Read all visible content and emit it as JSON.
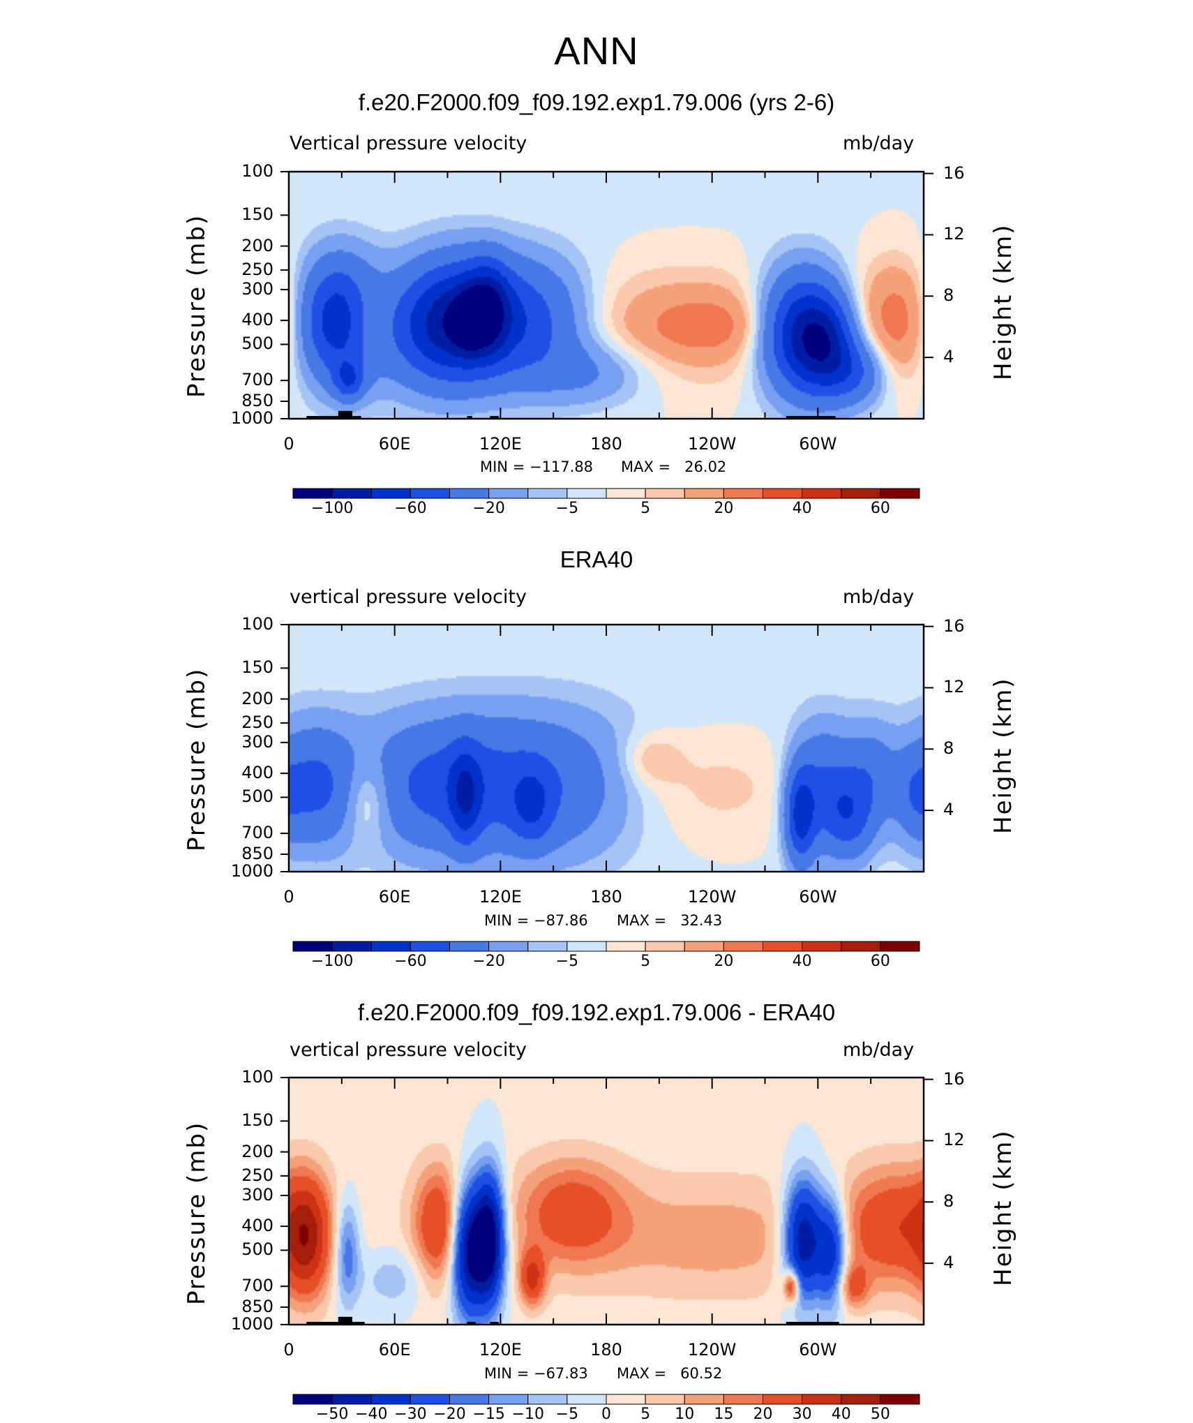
{
  "main_title": "ANN",
  "colors": {
    "frame": "#000000",
    "land": "#000000"
  },
  "chart_data": [
    {
      "type": "heatmap",
      "title": "f.e20.F2000.f09_f09.192.exp1.79.006 (yrs 2-6)",
      "left_label": "Vertical pressure velocity",
      "right_label": "mb/day",
      "ylabel": "Pressure (mb)",
      "y2label": "Height (km)",
      "xlim": [
        0,
        360
      ],
      "ylim": [
        1000,
        100
      ],
      "pressure_ticks": [
        100,
        150,
        200,
        250,
        300,
        400,
        500,
        700,
        850,
        1000
      ],
      "height_ticks": [
        16,
        12,
        8,
        4
      ],
      "lon_ticks": [
        {
          "lon": 0,
          "label": "0"
        },
        {
          "lon": 60,
          "label": "60E"
        },
        {
          "lon": 120,
          "label": "120E"
        },
        {
          "lon": 180,
          "label": "180"
        },
        {
          "lon": 240,
          "label": "120W"
        },
        {
          "lon": 300,
          "label": "60W"
        }
      ],
      "min_label": "MIN = −117.88",
      "max_label": "MAX =   26.02",
      "colorbar": {
        "colors": [
          "#00007f",
          "#001ea5",
          "#0032cc",
          "#1e50e6",
          "#4678e6",
          "#78a0f0",
          "#a5c3f5",
          "#d2e6fa",
          "#fae6d2",
          "#fac8aa",
          "#f5a078",
          "#f07850",
          "#e65028",
          "#cd3214",
          "#a51e0a",
          "#7d0000"
        ],
        "labels": [
          "−100",
          "−60",
          "−20",
          "−5",
          "5",
          "20",
          "40",
          "60"
        ]
      },
      "blobs": [
        {
          "lon": 28,
          "p": 400,
          "w": 16,
          "h": 0.55,
          "v": -75
        },
        {
          "lon": 34,
          "p": 700,
          "w": 6,
          "h": 0.18,
          "v": -40
        },
        {
          "lon": 44,
          "p": 400,
          "w": 10,
          "h": 0.35,
          "v": 22
        },
        {
          "lon": 98,
          "p": 400,
          "w": 22,
          "h": 0.55,
          "v": -85
        },
        {
          "lon": 102,
          "p": 400,
          "w": 6,
          "h": 0.25,
          "v": -40
        },
        {
          "lon": 113,
          "p": 350,
          "w": 8,
          "h": 0.4,
          "v": -45
        },
        {
          "lon": 140,
          "p": 400,
          "w": 22,
          "h": 0.55,
          "v": -40
        },
        {
          "lon": 170,
          "p": 650,
          "w": 25,
          "h": 0.3,
          "v": -20
        },
        {
          "lon": 76,
          "p": 450,
          "w": 20,
          "h": 0.55,
          "v": -22
        },
        {
          "lon": 228,
          "p": 420,
          "w": 55,
          "h": 0.55,
          "v": 20
        },
        {
          "lon": 237,
          "p": 420,
          "w": 22,
          "h": 0.25,
          "v": 12
        },
        {
          "lon": 290,
          "p": 450,
          "w": 16,
          "h": 0.55,
          "v": -80
        },
        {
          "lon": 305,
          "p": 500,
          "w": 12,
          "h": 0.45,
          "v": -55
        },
        {
          "lon": 322,
          "p": 650,
          "w": 12,
          "h": 0.3,
          "v": -35
        },
        {
          "lon": 346,
          "p": 400,
          "w": 18,
          "h": 0.55,
          "v": 28
        }
      ],
      "bias": -3,
      "land": [
        {
          "lon1": 10,
          "lon2": 30,
          "p": 975
        },
        {
          "lon1": 28,
          "lon2": 36,
          "p": 930
        },
        {
          "lon1": 36,
          "lon2": 41,
          "p": 975
        },
        {
          "lon1": 101,
          "lon2": 104,
          "p": 975
        },
        {
          "lon1": 114,
          "lon2": 119,
          "p": 975
        },
        {
          "lon1": 282,
          "lon2": 310,
          "p": 975
        }
      ]
    },
    {
      "type": "heatmap",
      "title": "ERA40",
      "left_label": "vertical pressure velocity",
      "right_label": "mb/day",
      "ylabel": "Pressure (mb)",
      "y2label": "Height (km)",
      "xlim": [
        0,
        360
      ],
      "ylim": [
        1000,
        100
      ],
      "pressure_ticks": [
        100,
        150,
        200,
        250,
        300,
        400,
        500,
        700,
        850,
        1000
      ],
      "height_ticks": [
        16,
        12,
        8,
        4
      ],
      "lon_ticks": [
        {
          "lon": 0,
          "label": "0"
        },
        {
          "lon": 60,
          "label": "60E"
        },
        {
          "lon": 120,
          "label": "120E"
        },
        {
          "lon": 180,
          "label": "180"
        },
        {
          "lon": 240,
          "label": "120W"
        },
        {
          "lon": 300,
          "label": "60W"
        }
      ],
      "min_label": "MIN = −87.86",
      "max_label": "MAX =   32.43",
      "colorbar": {
        "colors": [
          "#00007f",
          "#001ea5",
          "#0032cc",
          "#1e50e6",
          "#4678e6",
          "#78a0f0",
          "#a5c3f5",
          "#d2e6fa",
          "#fae6d2",
          "#fac8aa",
          "#f5a078",
          "#f07850",
          "#e65028",
          "#cd3214",
          "#a51e0a",
          "#7d0000"
        ],
        "labels": [
          "−100",
          "−60",
          "−20",
          "−5",
          "5",
          "20",
          "40",
          "60"
        ]
      },
      "blobs": [
        {
          "lon": 14,
          "p": 450,
          "w": 18,
          "h": 0.55,
          "v": -40
        },
        {
          "lon": 44,
          "p": 500,
          "w": 10,
          "h": 0.4,
          "v": 25
        },
        {
          "lon": 80,
          "p": 450,
          "w": 30,
          "h": 0.6,
          "v": -32
        },
        {
          "lon": 100,
          "p": 500,
          "w": 6,
          "h": 0.45,
          "v": -40
        },
        {
          "lon": 140,
          "p": 450,
          "w": 40,
          "h": 0.65,
          "v": -40
        },
        {
          "lon": 138,
          "p": 550,
          "w": 8,
          "h": 0.35,
          "v": -30
        },
        {
          "lon": 225,
          "p": 450,
          "w": 55,
          "h": 0.55,
          "v": 12
        },
        {
          "lon": 205,
          "p": 350,
          "w": 12,
          "h": 0.25,
          "v": 12
        },
        {
          "lon": 290,
          "p": 600,
          "w": 6,
          "h": 0.45,
          "v": -60
        },
        {
          "lon": 303,
          "p": 450,
          "w": 12,
          "h": 0.55,
          "v": -38
        },
        {
          "lon": 318,
          "p": 600,
          "w": 10,
          "h": 0.4,
          "v": -40
        },
        {
          "lon": 330,
          "p": 400,
          "w": 10,
          "h": 0.45,
          "v": -25
        },
        {
          "lon": 355,
          "p": 500,
          "w": 8,
          "h": 0.4,
          "v": -18
        }
      ],
      "bias": -4,
      "land": []
    },
    {
      "type": "heatmap",
      "title": "f.e20.F2000.f09_f09.192.exp1.79.006 - ERA40",
      "left_label": "vertical pressure velocity",
      "right_label": "mb/day",
      "ylabel": "Pressure (mb)",
      "y2label": "Height (km)",
      "xlim": [
        0,
        360
      ],
      "ylim": [
        1000,
        100
      ],
      "pressure_ticks": [
        100,
        150,
        200,
        250,
        300,
        400,
        500,
        700,
        850,
        1000
      ],
      "height_ticks": [
        16,
        12,
        8,
        4
      ],
      "lon_ticks": [
        {
          "lon": 0,
          "label": "0"
        },
        {
          "lon": 60,
          "label": "60E"
        },
        {
          "lon": 120,
          "label": "120E"
        },
        {
          "lon": 180,
          "label": "180"
        },
        {
          "lon": 240,
          "label": "120W"
        },
        {
          "lon": 300,
          "label": "60W"
        }
      ],
      "min_label": "MIN = −67.83",
      "max_label": "MAX =   60.52",
      "colorbar": {
        "colors": [
          "#00007f",
          "#001ea5",
          "#0032cc",
          "#1e50e6",
          "#4678e6",
          "#78a0f0",
          "#a5c3f5",
          "#d2e6fa",
          "#fae6d2",
          "#fac8aa",
          "#f5a078",
          "#f07850",
          "#e65028",
          "#cd3214",
          "#a51e0a",
          "#7d0000"
        ],
        "labels": [
          "−50",
          "−40",
          "−30",
          "−20",
          "−15",
          "−10",
          "−5",
          "0",
          "5",
          "10",
          "15",
          "20",
          "30",
          "40",
          "50"
        ]
      },
      "blobs": [
        {
          "lon": 10,
          "p": 450,
          "w": 9,
          "h": 0.55,
          "v": 35
        },
        {
          "lon": 33,
          "p": 500,
          "w": 5,
          "h": 0.5,
          "v": -22
        },
        {
          "lon": 85,
          "p": 400,
          "w": 10,
          "h": 0.55,
          "v": 28
        },
        {
          "lon": 102,
          "p": 500,
          "w": 7,
          "h": 0.6,
          "v": -55
        },
        {
          "lon": 114,
          "p": 450,
          "w": 6,
          "h": 0.6,
          "v": -60
        },
        {
          "lon": 138,
          "p": 650,
          "w": 5,
          "h": 0.25,
          "v": 30
        },
        {
          "lon": 160,
          "p": 350,
          "w": 22,
          "h": 0.5,
          "v": 22
        },
        {
          "lon": 240,
          "p": 450,
          "w": 50,
          "h": 0.55,
          "v": 10
        },
        {
          "lon": 292,
          "p": 450,
          "w": 8,
          "h": 0.55,
          "v": -55
        },
        {
          "lon": 308,
          "p": 500,
          "w": 6,
          "h": 0.5,
          "v": -40
        },
        {
          "lon": 285,
          "p": 700,
          "w": 3,
          "h": 0.15,
          "v": 35
        },
        {
          "lon": 345,
          "p": 400,
          "w": 22,
          "h": 0.55,
          "v": 25
        },
        {
          "lon": 320,
          "p": 700,
          "w": 6,
          "h": 0.2,
          "v": 20
        },
        {
          "lon": 60,
          "p": 650,
          "w": 15,
          "h": 0.3,
          "v": -10
        }
      ],
      "bias": 3,
      "land": [
        {
          "lon1": 10,
          "lon2": 30,
          "p": 975
        },
        {
          "lon1": 28,
          "lon2": 36,
          "p": 930
        },
        {
          "lon1": 36,
          "lon2": 43,
          "p": 975
        },
        {
          "lon1": 101,
          "lon2": 106,
          "p": 975
        },
        {
          "lon1": 114,
          "lon2": 119,
          "p": 975
        },
        {
          "lon1": 282,
          "lon2": 312,
          "p": 975
        }
      ]
    }
  ]
}
